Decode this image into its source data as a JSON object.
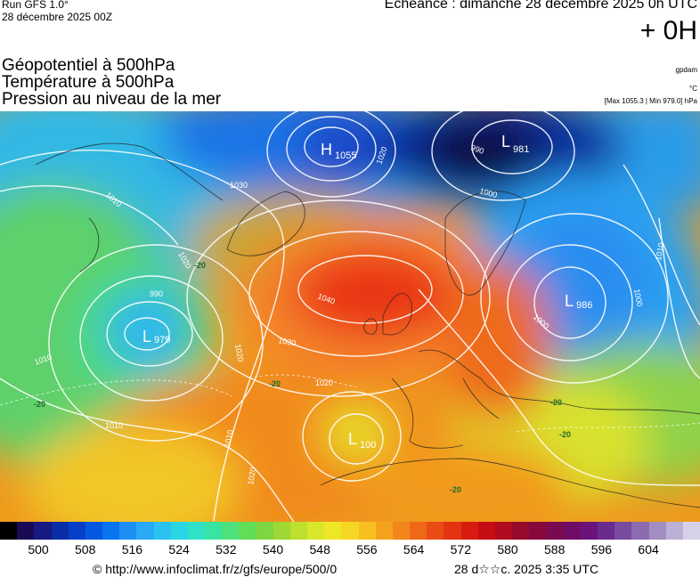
{
  "header": {
    "run_label": "Run GFS 1.0°",
    "run_date": "28 décembre 2025 00Z",
    "echeance": "Echéance : dimanche 28 décembre 2025 0h UTC",
    "offset": "+ 0H"
  },
  "titles": {
    "line1": "Géopotentiel à 500hPa",
    "line2": "Température à 500hPa",
    "line3": "Pression au niveau de la mer"
  },
  "units": {
    "geopotential": "gpdam",
    "temperature": "°C",
    "max_min": "[Max 1055.3 | Min 979.0] hPa"
  },
  "map": {
    "pressure_centers": [
      {
        "type": "H",
        "value": "1055"
      },
      {
        "type": "L",
        "value": "981"
      },
      {
        "type": "L",
        "value": "979"
      },
      {
        "type": "L",
        "value": "986"
      },
      {
        "type": "L",
        "value": "100"
      }
    ],
    "isobar_labels": [
      "990",
      "1000",
      "1010",
      "1020",
      "1030",
      "1040",
      "1000",
      "1010",
      "1020",
      "1030",
      "1010",
      "1020",
      "1010",
      "1020",
      "990",
      "1010",
      "1000",
      "1020"
    ],
    "isotherm_labels": [
      "-20",
      "-20",
      "-20",
      "-20",
      "-20",
      "-20"
    ]
  },
  "legend": {
    "tick_values": [
      "500",
      "508",
      "516",
      "524",
      "532",
      "540",
      "548",
      "556",
      "564",
      "572",
      "580",
      "588",
      "596",
      "604"
    ],
    "colors": [
      "#000000",
      "#1a0a55",
      "#161980",
      "#0a2ea6",
      "#0640c6",
      "#0559e0",
      "#0a74ee",
      "#1d8ff3",
      "#2aa9f6",
      "#2bc2f2",
      "#2ad6e3",
      "#2fe2c6",
      "#39e3a1",
      "#4de17c",
      "#63dc58",
      "#7ed642",
      "#9dd834",
      "#bde02e",
      "#d9e62a",
      "#eee726",
      "#f6d624",
      "#f7bf20",
      "#f5a31d",
      "#f2861a",
      "#ee6817",
      "#e94c14",
      "#e33311",
      "#d81b0f",
      "#c60d13",
      "#b00b1e",
      "#980a2c",
      "#86093c",
      "#7a0a50",
      "#700c66",
      "#6a147b",
      "#6b2a8d",
      "#7a4a9f",
      "#8c6bb0",
      "#a38ec3",
      "#bcb0d6",
      "#d6d0e8"
    ]
  },
  "footer": {
    "copyright": "© http://www.infoclimat.fr/z/gfs/europe/500/0",
    "date": "28 d☆☆c. 2025  3:35 UTC"
  }
}
